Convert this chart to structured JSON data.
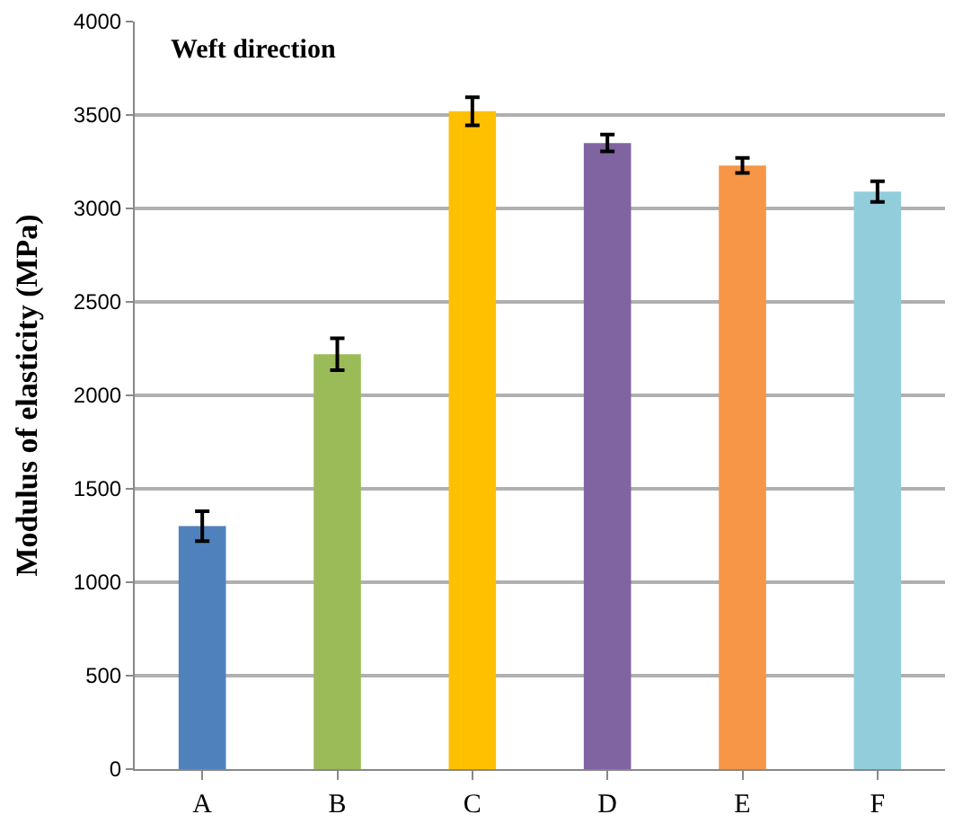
{
  "chart_data": {
    "type": "bar",
    "ylabel": "Modulus of elasticity (MPa)",
    "annotations": [
      "Weft direction"
    ],
    "categories": [
      "A",
      "B",
      "C",
      "D",
      "E",
      "F"
    ],
    "values": [
      1300,
      2220,
      3520,
      3350,
      3230,
      3090
    ],
    "errors": [
      80,
      85,
      75,
      45,
      40,
      55
    ],
    "colors": [
      "#4f81bd",
      "#9bbb59",
      "#ffc000",
      "#8064a2",
      "#f79646",
      "#92cddc"
    ],
    "ylim": [
      0,
      4000
    ],
    "yticks": [
      0,
      500,
      1000,
      1500,
      2000,
      2500,
      3000,
      3500,
      4000
    ],
    "grid": "y"
  }
}
